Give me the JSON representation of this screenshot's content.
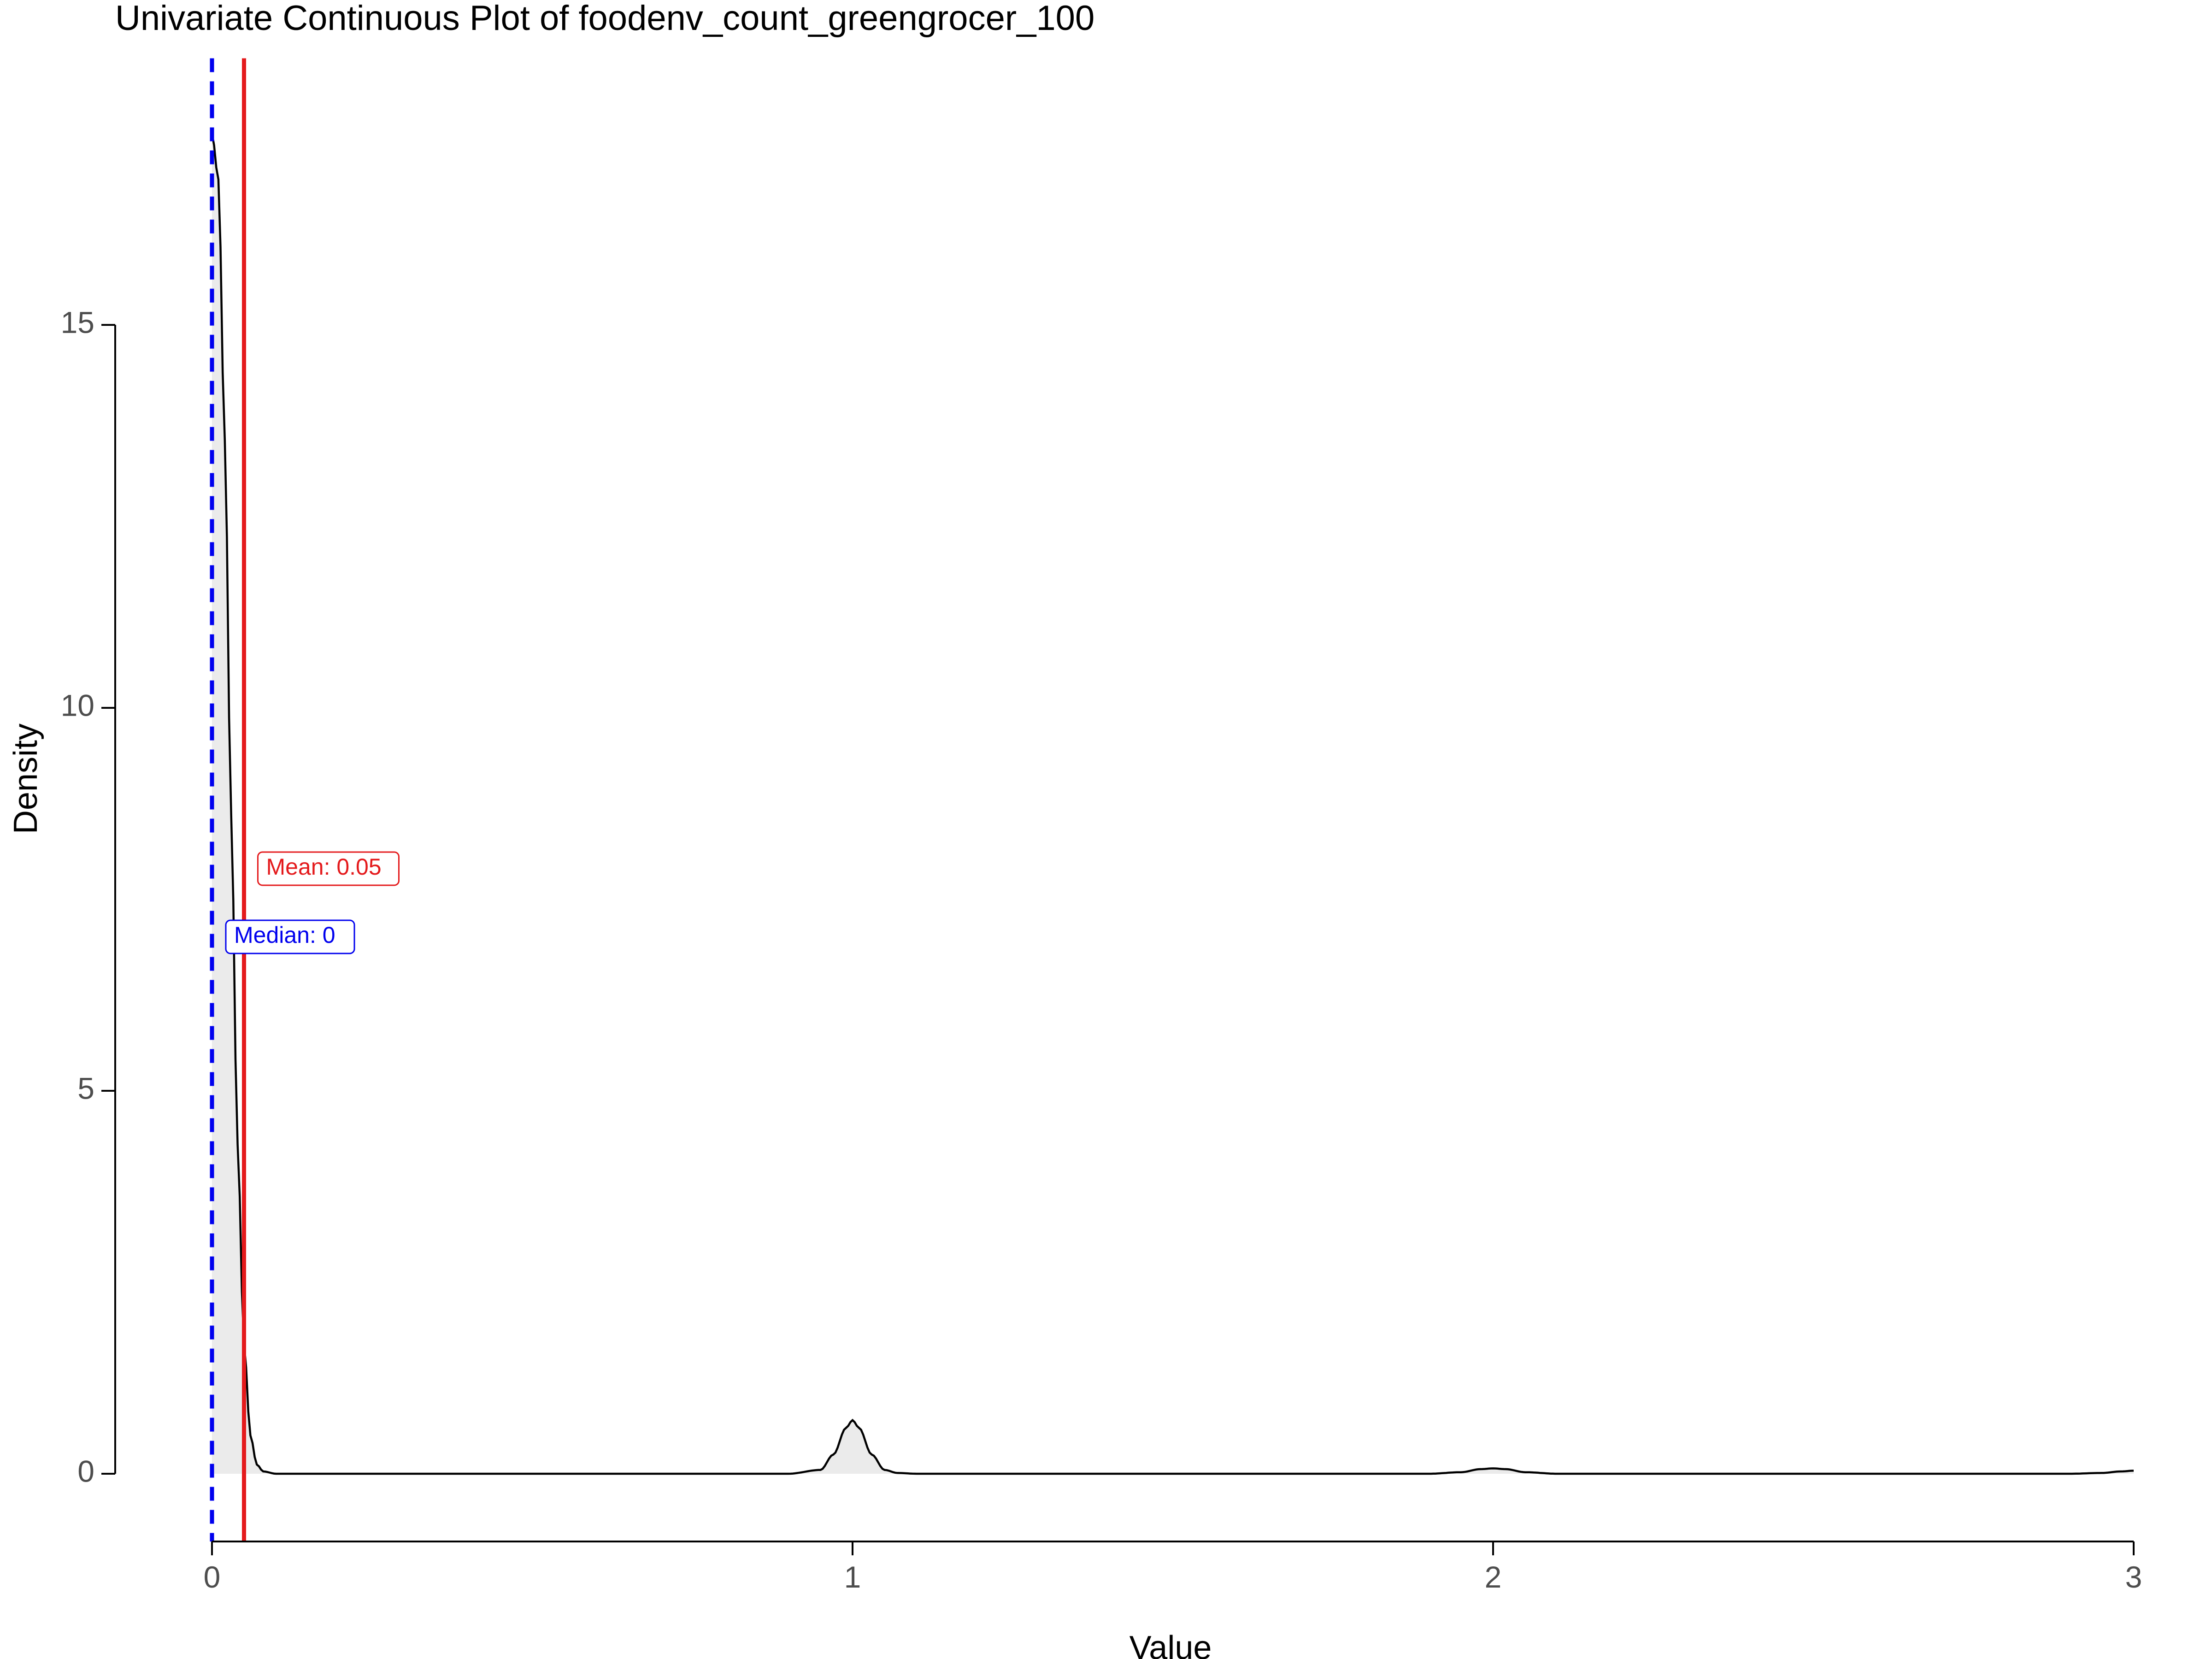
{
  "chart_data": {
    "type": "area",
    "title": "Univariate Continuous Plot of foodenv_count_greengrocer_100",
    "xlabel": "Value",
    "ylabel": "Density",
    "xlim": [
      0,
      3
    ],
    "ylim": [
      -0.9,
      18.3
    ],
    "x_ticks": [
      0,
      1,
      2,
      3
    ],
    "x_tick_labels": [
      "0",
      "1",
      "2",
      "3"
    ],
    "y_ticks": [
      0,
      5,
      10,
      15
    ],
    "y_tick_labels": [
      "0",
      "5",
      "10",
      "15"
    ],
    "grid": false,
    "legend": "none",
    "series": [
      {
        "x": [
          0,
          0.01,
          0.02,
          0.03,
          0.04,
          0.05,
          0.06,
          0.07,
          0.08,
          0.1,
          0.15,
          0.3,
          0.6,
          0.9,
          0.95,
          0.97,
          0.99,
          1.0,
          1.01,
          1.03,
          1.05,
          1.07,
          1.1,
          1.5,
          1.9,
          1.95,
          1.98,
          2.0,
          2.02,
          2.05,
          2.1,
          2.5,
          2.9,
          2.95,
          2.98,
          3.0
        ],
        "y": [
          17.5,
          16.9,
          13.5,
          8.6,
          4.3,
          1.7,
          0.5,
          0.12,
          0.03,
          0.0,
          0.0,
          0.0,
          0.0,
          0.0,
          0.05,
          0.25,
          0.6,
          0.7,
          0.6,
          0.25,
          0.05,
          0.01,
          0.0,
          0.0,
          0.0,
          0.02,
          0.06,
          0.07,
          0.06,
          0.02,
          0.0,
          0.0,
          0.0,
          0.01,
          0.03,
          0.04
        ]
      }
    ],
    "reference_lines": [
      {
        "name": "Mean",
        "x": 0.05,
        "label": "Mean: 0.05",
        "color": "#e41a1c",
        "style": "solid"
      },
      {
        "name": "Median",
        "x": 0,
        "label": "Median: 0",
        "color": "#0000ee",
        "style": "dashed"
      }
    ],
    "colors": {
      "fill": "#ebebeb",
      "line": "#000000",
      "mean": "#e41a1c",
      "median": "#0000ee"
    }
  }
}
